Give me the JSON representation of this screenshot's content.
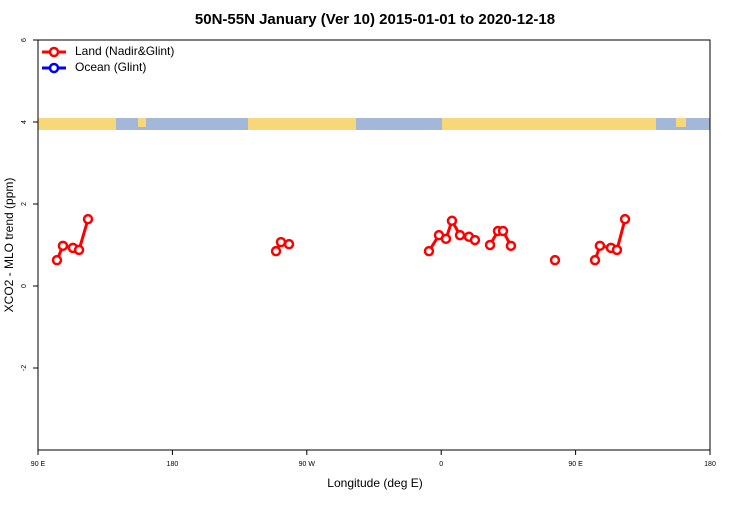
{
  "chart_data": {
    "type": "line",
    "title": "50N-55N January (Ver 10)   2015-01-01 to 2020-12-18",
    "x_label": "Longitude (deg E)",
    "y_label": "XCO2 - MLO trend (ppm)",
    "xlim": [
      90,
      540
    ],
    "xticks": [
      {
        "value": 90,
        "label": "90 E"
      },
      {
        "value": 180,
        "label": "180"
      },
      {
        "value": 270,
        "label": "90 W"
      },
      {
        "value": 360,
        "label": "0"
      },
      {
        "value": 450,
        "label": "90 E"
      },
      {
        "value": 540,
        "label": "180"
      }
    ],
    "ylim": [
      -4,
      6
    ],
    "yticks": [
      -2,
      0,
      2,
      4,
      6
    ],
    "legend": "topleft",
    "series": [
      {
        "name": "Land (Nadir&Glint)",
        "color": "#ff0000",
        "x": [
          102.7,
          106.7,
          113.4,
          117.5,
          123.5,
          null,
          249.4,
          252.7,
          258.1,
          null,
          351.8,
          358.5,
          363.2,
          367.2,
          372.6,
          378.6,
          382.6,
          null,
          392.7,
          398.0,
          401.4,
          406.7,
          null,
          436.2,
          null,
          463.0,
          466.3,
          473.7,
          477.7,
          483.1
        ],
        "values": [
          0.63,
          0.98,
          0.93,
          0.88,
          1.63,
          null,
          0.85,
          1.07,
          1.02,
          null,
          0.85,
          1.24,
          1.15,
          1.59,
          1.24,
          1.2,
          1.12,
          null,
          1.0,
          1.34,
          1.34,
          0.98,
          null,
          0.63,
          null,
          0.63,
          0.98,
          0.93,
          0.88,
          1.63
        ]
      },
      {
        "name": "Ocean (Glint)",
        "color": "#0000ff",
        "x": [],
        "values": []
      }
    ]
  }
}
